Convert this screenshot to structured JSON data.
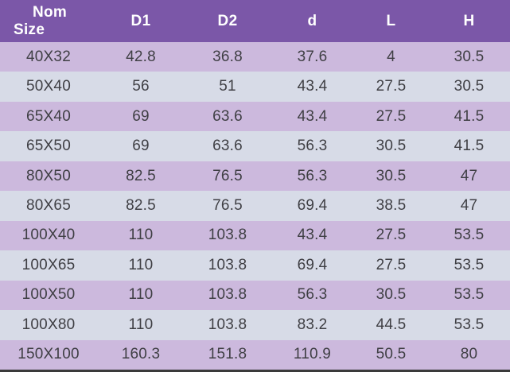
{
  "colors": {
    "header_bg": "#7B57A8",
    "header_text": "#FFFFFF",
    "row_purple": "#CCB9DD",
    "row_grey": "#D7DBE7",
    "cell_text": "#3F3F44",
    "bottom_border": "#3A3A3A"
  },
  "chart_data": {
    "type": "table",
    "title": "Pipe fitting dimensions table",
    "header": {
      "col0": [
        "Nom",
        "Size"
      ],
      "cols": [
        "D1",
        "D2",
        "d",
        "L",
        "H"
      ]
    },
    "rows": [
      [
        "40X32",
        "42.8",
        "36.8",
        "37.6",
        "4",
        "30.5"
      ],
      [
        "50X40",
        "56",
        "51",
        "43.4",
        "27.5",
        "30.5"
      ],
      [
        "65X40",
        "69",
        "63.6",
        "43.4",
        "27.5",
        "41.5"
      ],
      [
        "65X50",
        "69",
        "63.6",
        "56.3",
        "30.5",
        "41.5"
      ],
      [
        "80X50",
        "82.5",
        "76.5",
        "56.3",
        "30.5",
        "47"
      ],
      [
        "80X65",
        "82.5",
        "76.5",
        "69.4",
        "38.5",
        "47"
      ],
      [
        "100X40",
        "110",
        "103.8",
        "43.4",
        "27.5",
        "53.5"
      ],
      [
        "100X65",
        "110",
        "103.8",
        "69.4",
        "27.5",
        "53.5"
      ],
      [
        "100X50",
        "110",
        "103.8",
        "56.3",
        "30.5",
        "53.5"
      ],
      [
        "100X80",
        "110",
        "103.8",
        "83.2",
        "44.5",
        "53.5"
      ],
      [
        "150X100",
        "160.3",
        "151.8",
        "110.9",
        "50.5",
        "80"
      ]
    ]
  }
}
